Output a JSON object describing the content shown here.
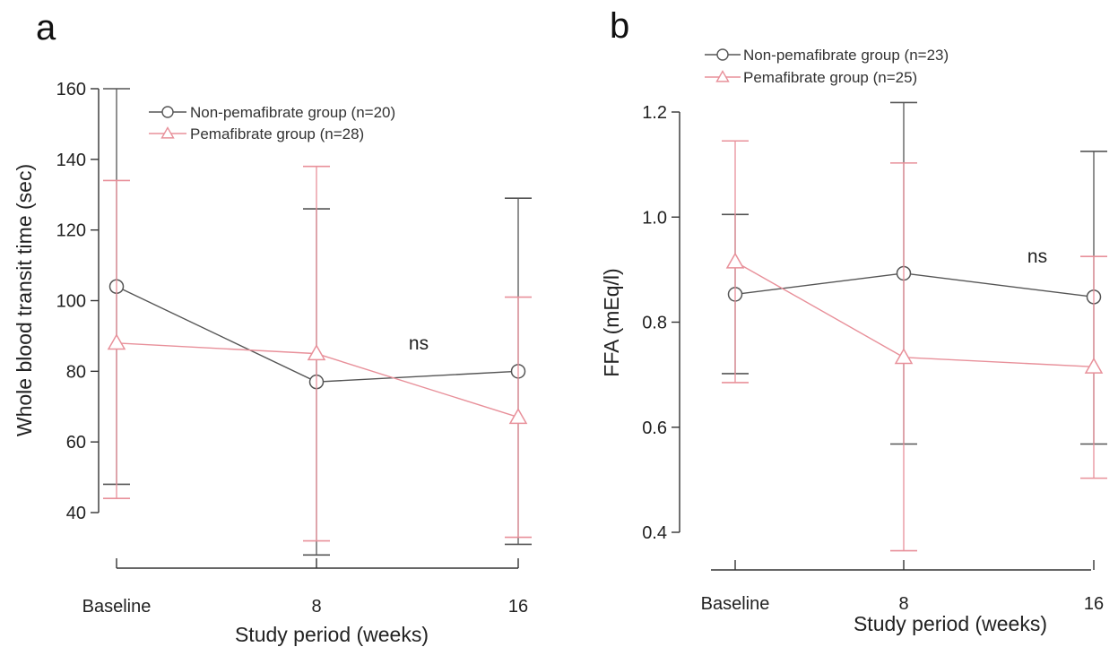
{
  "colors": {
    "non": "#555555",
    "pem": "#e8909a"
  },
  "chart_data": [
    {
      "type": "line",
      "panel_label": "a",
      "xlabel": "Study period (weeks)",
      "ylabel": "Whole blood transit time (sec)",
      "categories": [
        "Baseline",
        "8",
        "16"
      ],
      "ylim": [
        40,
        160
      ],
      "yticks": [
        "40",
        "60",
        "80",
        "100",
        "120",
        "140",
        "160"
      ],
      "series": [
        {
          "name": "Non-pemafibrate group (n=20)",
          "marker": "circle",
          "color": "#555555",
          "values": [
            104,
            77,
            80
          ],
          "err_low": [
            48,
            28,
            31
          ],
          "err_high": [
            160,
            126,
            129
          ]
        },
        {
          "name": "Pemafibrate group (n=28)",
          "marker": "triangle",
          "color": "#e8909a",
          "values": [
            88,
            85,
            67
          ],
          "err_low": [
            44,
            32,
            33
          ],
          "err_high": [
            134,
            138,
            101
          ]
        }
      ],
      "annotations": [
        {
          "text": "ns",
          "x": "8"
        }
      ],
      "legend": "top-center"
    },
    {
      "type": "line",
      "panel_label": "b",
      "xlabel": "Study period (weeks)",
      "ylabel": "FFA (mEq/l)",
      "categories": [
        "Baseline",
        "8",
        "16"
      ],
      "ylim": [
        0.4,
        1.2
      ],
      "yticks": [
        "0.4",
        "0.6",
        "0.8",
        "1.0",
        "1.2"
      ],
      "series": [
        {
          "name": "Non-pemafibrate group (n=23)",
          "marker": "circle",
          "color": "#555555",
          "values": [
            0.853,
            0.893,
            0.848
          ],
          "err_low": [
            0.702,
            0.568,
            0.568
          ],
          "err_high": [
            1.005,
            1.218,
            1.125
          ]
        },
        {
          "name": "Pemafibrate group (n=25)",
          "marker": "triangle",
          "color": "#e8909a",
          "values": [
            0.915,
            0.733,
            0.715
          ],
          "err_low": [
            0.685,
            0.365,
            0.503
          ],
          "err_high": [
            1.145,
            1.103,
            0.925
          ]
        }
      ],
      "annotations": [
        {
          "text": "ns",
          "x": "16"
        }
      ],
      "legend": "top-left"
    }
  ]
}
